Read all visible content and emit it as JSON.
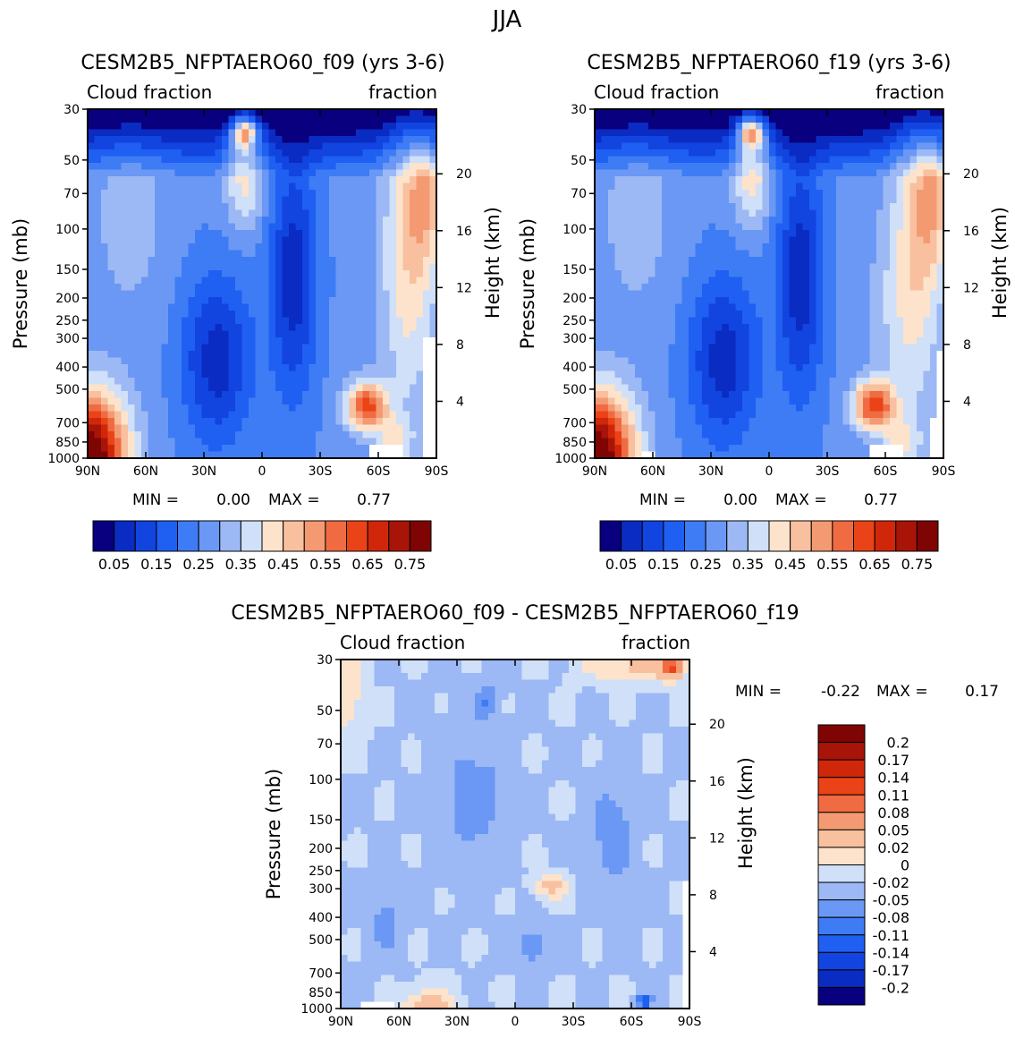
{
  "page": {
    "title": "JJA"
  },
  "colors": {
    "frame": "#000000",
    "missing": "#ffffff"
  },
  "chart_data": [
    {
      "type": "heatmap",
      "title": "CESM2B5_NFPTAERO60_f09 (yrs 3-6)",
      "left_label": "Cloud fraction",
      "right_label": "fraction",
      "xlabel": "",
      "ylabel": "Pressure (mb)",
      "y2label": "Height (km)",
      "x_ticks": [
        "90N",
        "60N",
        "30N",
        "0",
        "30S",
        "60S",
        "90S"
      ],
      "y_ticks": [
        30,
        50,
        70,
        100,
        150,
        200,
        250,
        300,
        400,
        500,
        700,
        850,
        1000
      ],
      "y2_ticks": [
        20,
        16,
        12,
        8,
        4
      ],
      "min_label": "MIN =",
      "min_value": "0.00",
      "max_label": "MAX =",
      "max_value": "0.77",
      "levels": [
        0.05,
        0.1,
        0.15,
        0.2,
        0.25,
        0.3,
        0.35,
        0.4,
        0.45,
        0.5,
        0.55,
        0.6,
        0.65,
        0.7,
        0.75
      ],
      "colorbar_labels": [
        "0.05",
        "0.15",
        "0.25",
        "0.35",
        "0.45",
        "0.55",
        "0.65",
        "0.75"
      ],
      "palette": [
        "#08007f",
        "#0a2cc3",
        "#1244e0",
        "#1f5ff2",
        "#3e7cf5",
        "#6a98f4",
        "#9cb9f5",
        "#cfe0f8",
        "#fde3cb",
        "#f8c09e",
        "#f49a72",
        "#f06b42",
        "#ea4317",
        "#d0270b",
        "#a81408",
        "#7e0503"
      ]
    },
    {
      "type": "heatmap",
      "title": "CESM2B5_NFPTAERO60_f19 (yrs 3-6)",
      "left_label": "Cloud fraction",
      "right_label": "fraction",
      "xlabel": "",
      "ylabel": "Pressure (mb)",
      "y2label": "Height (km)",
      "x_ticks": [
        "90N",
        "60N",
        "30N",
        "0",
        "30S",
        "60S",
        "90S"
      ],
      "y_ticks": [
        30,
        50,
        70,
        100,
        150,
        200,
        250,
        300,
        400,
        500,
        700,
        850,
        1000
      ],
      "y2_ticks": [
        20,
        16,
        12,
        8,
        4
      ],
      "min_label": "MIN =",
      "min_value": "0.00",
      "max_label": "MAX =",
      "max_value": "0.77",
      "levels": [
        0.05,
        0.1,
        0.15,
        0.2,
        0.25,
        0.3,
        0.35,
        0.4,
        0.45,
        0.5,
        0.55,
        0.6,
        0.65,
        0.7,
        0.75
      ],
      "colorbar_labels": [
        "0.05",
        "0.15",
        "0.25",
        "0.35",
        "0.45",
        "0.55",
        "0.65",
        "0.75"
      ],
      "palette": [
        "#08007f",
        "#0a2cc3",
        "#1244e0",
        "#1f5ff2",
        "#3e7cf5",
        "#6a98f4",
        "#9cb9f5",
        "#cfe0f8",
        "#fde3cb",
        "#f8c09e",
        "#f49a72",
        "#f06b42",
        "#ea4317",
        "#d0270b",
        "#a81408",
        "#7e0503"
      ]
    },
    {
      "type": "heatmap",
      "title": "CESM2B5_NFPTAERO60_f09 - CESM2B5_NFPTAERO60_f19",
      "left_label": "Cloud fraction",
      "right_label": "fraction",
      "xlabel": "",
      "ylabel": "Pressure (mb)",
      "y2label": "Height (km)",
      "x_ticks": [
        "90N",
        "60N",
        "30N",
        "0",
        "30S",
        "60S",
        "90S"
      ],
      "y_ticks": [
        30,
        50,
        70,
        100,
        150,
        200,
        250,
        300,
        400,
        500,
        700,
        850,
        1000
      ],
      "y2_ticks": [
        20,
        16,
        12,
        8,
        4
      ],
      "min_label": "MIN =",
      "min_value": "-0.22",
      "max_label": "MAX =",
      "max_value": "0.17",
      "levels": [
        -0.2,
        -0.17,
        -0.14,
        -0.11,
        -0.08,
        -0.05,
        -0.02,
        0,
        0.02,
        0.05,
        0.08,
        0.11,
        0.14,
        0.17,
        0.2
      ],
      "colorbar_labels": [
        "0.2",
        "0.17",
        "0.14",
        "0.11",
        "0.08",
        "0.05",
        "0.02",
        "0",
        "-0.02",
        "-0.05",
        "-0.08",
        "-0.11",
        "-0.14",
        "-0.17",
        "-0.2"
      ],
      "palette": [
        "#08007f",
        "#0a2cc3",
        "#1244e0",
        "#1f5ff2",
        "#3e7cf5",
        "#6a98f4",
        "#9cb9f5",
        "#cfe0f8",
        "#fde3cb",
        "#f8c09e",
        "#f49a72",
        "#f06b42",
        "#ea4317",
        "#d0270b",
        "#a81408",
        "#7e0503"
      ]
    }
  ]
}
